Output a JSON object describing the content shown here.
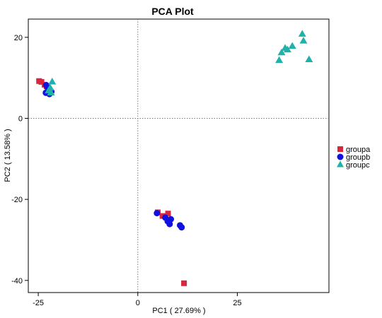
{
  "chart_data": {
    "type": "scatter",
    "title": "PCA Plot",
    "xlabel": "PC1 ( 27.69% )",
    "ylabel": "PC2 ( 13.58% )",
    "xlim": [
      -27.5,
      48
    ],
    "ylim": [
      -43,
      24.5
    ],
    "xticks": [
      -25,
      0,
      25
    ],
    "yticks": [
      20,
      0,
      -20,
      -40
    ],
    "grid": false,
    "reference_lines": {
      "x": 0,
      "y": 0,
      "style": "dotted"
    },
    "legend_position": "right",
    "series": [
      {
        "name": "groupa",
        "color": "#d7263d",
        "marker": "square",
        "points": [
          [
            -24.8,
            9.2
          ],
          [
            -24.2,
            9.0
          ],
          [
            -23.4,
            8.3
          ],
          [
            -22.9,
            7.9
          ],
          [
            -22.4,
            7.0
          ],
          [
            5.0,
            -23.2
          ],
          [
            6.2,
            -24.1
          ],
          [
            7.6,
            -23.5
          ],
          [
            11.6,
            -40.7
          ]
        ]
      },
      {
        "name": "groupb",
        "color": "#1010e0",
        "marker": "circle",
        "points": [
          [
            -23.0,
            8.2
          ],
          [
            -22.6,
            7.5
          ],
          [
            -23.1,
            6.3
          ],
          [
            -22.2,
            6.0
          ],
          [
            -21.7,
            6.6
          ],
          [
            4.8,
            -23.4
          ],
          [
            6.9,
            -24.5
          ],
          [
            7.5,
            -25.4
          ],
          [
            8.3,
            -24.9
          ],
          [
            8.0,
            -26.1
          ],
          [
            10.6,
            -26.4
          ],
          [
            11.0,
            -26.9
          ]
        ]
      },
      {
        "name": "groupc",
        "color": "#20b2aa",
        "marker": "triangle",
        "points": [
          [
            -21.5,
            9.0
          ],
          [
            -22.0,
            7.5
          ],
          [
            -22.4,
            6.8
          ],
          [
            -21.8,
            6.3
          ],
          [
            35.5,
            14.3
          ],
          [
            36.1,
            16.2
          ],
          [
            37.0,
            17.3
          ],
          [
            37.6,
            16.9
          ],
          [
            38.8,
            17.8
          ],
          [
            41.3,
            20.8
          ],
          [
            41.6,
            19.1
          ],
          [
            43.0,
            14.5
          ]
        ]
      }
    ]
  }
}
